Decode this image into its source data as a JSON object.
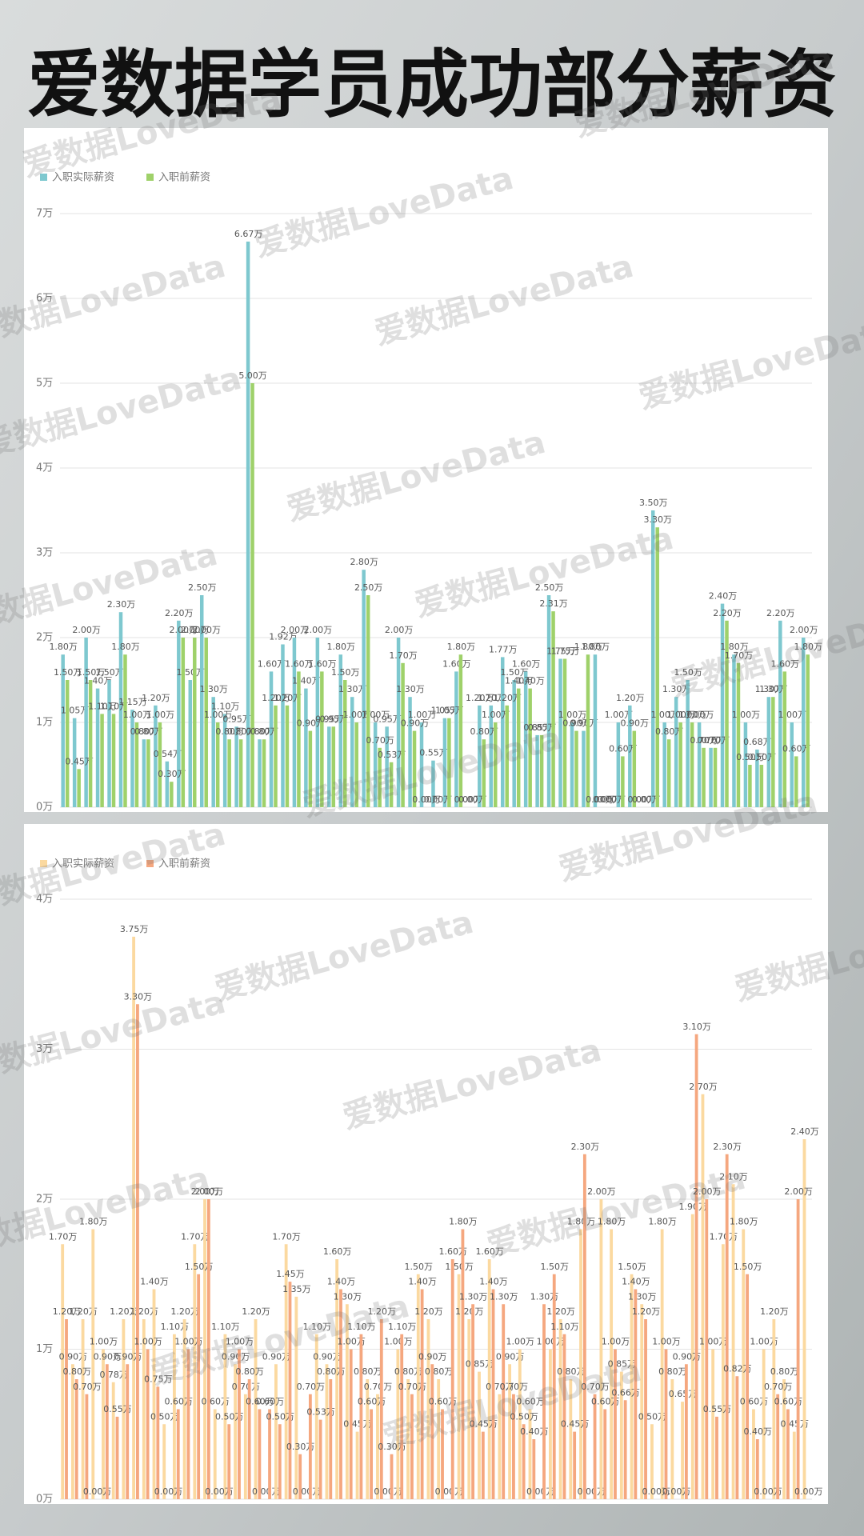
{
  "header": {
    "title": "爱数据学员成功部分薪资"
  },
  "watermark": "爱数据LoveData",
  "chart_data": [
    {
      "type": "bar",
      "ylim": [
        0,
        7
      ],
      "yticks": [
        {
          "value": 0,
          "label": "0万"
        },
        {
          "value": 1,
          "label": "1万"
        },
        {
          "value": 2,
          "label": "2万"
        },
        {
          "value": 3,
          "label": "3万"
        },
        {
          "value": 4,
          "label": "4万"
        },
        {
          "value": 5,
          "label": "5万"
        },
        {
          "value": 6,
          "label": "6万"
        },
        {
          "value": 7,
          "label": "7万"
        }
      ],
      "grid": true,
      "legend": "top-left",
      "series": [
        {
          "name": "入职实际薪资",
          "color": "#7ec8cf",
          "values": [
            1.8,
            1.05,
            2,
            1.4,
            1.5,
            2.3,
            1.15,
            0.8,
            1.2,
            0.54,
            2.2,
            1.5,
            2.5,
            1.3,
            1.1,
            0.95,
            6.67,
            0.8,
            1.6,
            1.92,
            2,
            1.4,
            2,
            0.95,
            1.8,
            1.3,
            2.8,
            1,
            0.95,
            2,
            1.3,
            1,
            0.55,
            1.05,
            1.6,
            0,
            1.2,
            1.2,
            1.77,
            1.5,
            1.6,
            0.85,
            2.5,
            1.75,
            1,
            0.9,
            1.8,
            0,
            1,
            1.2,
            0,
            3.5,
            1,
            1.3,
            1.5,
            1,
            0.7,
            2.4,
            1.8,
            1,
            0.68,
            1.3,
            2.2,
            1,
            2
          ],
          "value_labels": [
            "1.80万",
            "1.05万",
            "2.00万",
            "1.40万",
            "1.50万",
            "2.30万",
            "1.15万",
            "0.80万",
            "1.20万",
            "0.54万",
            "2.20万",
            "1.50万",
            "2.50万",
            "1.30万",
            "1.10万",
            "0.95万",
            "6.67万",
            "0.80万",
            "1.60万",
            "1.92万",
            "2.00万",
            "1.40万",
            "2.00万",
            "0.95万",
            "1.80万",
            "1.30万",
            "2.80万",
            "1.00万",
            "0.95万",
            "2.00万",
            "1.30万",
            "1.00万",
            "0.55万",
            "1.05万",
            "1.60万",
            "0.00万",
            "1.20万",
            "1.20万",
            "1.77万",
            "1.50万",
            "1.60万",
            "0.85万",
            "2.50万",
            "1.75万",
            "1.00万",
            "0.90万",
            "1.80万",
            "0.00万",
            "1.00万",
            "1.20万",
            "0.00万",
            "3.50万",
            "1.00万",
            "1.30万",
            "1.50万",
            "1.00万",
            "0.70万",
            "2.40万",
            "1.80万",
            "1.00万",
            "0.68万",
            "1.30万",
            "2.20万",
            "1.00万",
            "2.00万"
          ]
        },
        {
          "name": "入职前薪资",
          "color": "#9fd16a",
          "values": [
            1.5,
            0.45,
            1.5,
            1.1,
            1.1,
            1.8,
            1,
            0.8,
            1,
            0.3,
            2,
            2,
            2,
            1,
            0.8,
            0.8,
            5,
            0.8,
            1.2,
            1.2,
            1.6,
            0.9,
            1.6,
            0.95,
            1.5,
            1,
            2.5,
            0.7,
            0.53,
            1.7,
            0.9,
            0,
            0,
            1.05,
            1.8,
            0,
            0.8,
            1,
            1.2,
            1.4,
            1.4,
            0.85,
            2.31,
            1.75,
            0.9,
            1.8,
            0,
            0,
            0.6,
            0.9,
            0,
            3.3,
            0.8,
            1,
            1,
            0.7,
            0.7,
            2.2,
            1.7,
            0.5,
            0.5,
            1.3,
            1.6,
            0.6,
            1.8
          ],
          "value_labels": [
            "1.50万",
            "0.45万",
            "1.50万",
            "1.10万",
            "1.10万",
            "1.80万",
            "1.00万",
            "0.80万",
            "1.00万",
            "0.30万",
            "2.00万",
            "2.00万",
            "2.00万",
            "1.00万",
            "0.80万",
            "0.80万",
            "5.00万",
            "0.80万",
            "1.20万",
            "1.20万",
            "1.60万",
            "0.90万",
            "1.60万",
            "0.95万",
            "1.50万",
            "1.00万",
            "2.50万",
            "0.70万",
            "0.53万",
            "1.70万",
            "0.90万",
            "0.00万",
            "0.00万",
            "1.05万",
            "1.80万",
            "0.00万",
            "0.80万",
            "1.00万",
            "1.20万",
            "1.40万",
            "1.40万",
            "0.85万",
            "2.31万",
            "1.75万",
            "0.90万",
            "1.80万",
            "0.00万",
            "0.00万",
            "0.60万",
            "0.90万",
            "0.00万",
            "3.30万",
            "0.80万",
            "1.00万",
            "1.00万",
            "0.70万",
            "0.70万",
            "2.20万",
            "1.70万",
            "0.50万",
            "0.50万",
            "1.30万",
            "1.60万",
            "0.60万",
            "1.80万"
          ]
        }
      ]
    },
    {
      "type": "bar",
      "ylim": [
        0,
        4
      ],
      "yticks": [
        {
          "value": 0,
          "label": "0万"
        },
        {
          "value": 1,
          "label": "1万"
        },
        {
          "value": 2,
          "label": "2万"
        },
        {
          "value": 3,
          "label": "3万"
        },
        {
          "value": 4,
          "label": "4万"
        }
      ],
      "grid": true,
      "legend": "top-left",
      "series": [
        {
          "name": "入职实际薪资",
          "color": "#fbd9a0",
          "values": [
            1.7,
            0.9,
            1.2,
            1.8,
            1,
            0.78,
            1.2,
            3.75,
            1.2,
            1.4,
            0.5,
            1.1,
            1.2,
            1.7,
            2,
            0.6,
            1.1,
            0.9,
            0.7,
            1.2,
            0,
            0.9,
            1.7,
            1.35,
            0,
            1.1,
            0.9,
            1.6,
            1.3,
            0.45,
            0.8,
            0.7,
            0,
            1,
            0.8,
            1.5,
            1.2,
            0.8,
            0,
            1.5,
            1.2,
            0.85,
            1.6,
            0.7,
            0.9,
            1,
            0.6,
            0,
            1,
            1.2,
            0.8,
            1.8,
            0,
            2,
            1.8,
            0.85,
            1.5,
            1.3,
            0.5,
            1.8,
            0.8,
            0.65,
            1.9,
            2.7,
            1,
            1.7,
            2.1,
            1.8,
            0.6,
            1,
            1.2,
            0.8,
            0.45,
            2.4
          ],
          "value_labels": [
            "1.70万",
            "0.90万",
            "1.20万",
            "1.80万",
            "1.00万",
            "0.78万",
            "1.20万",
            "3.75万",
            "1.20万",
            "1.40万",
            "0.50万",
            "1.10万",
            "1.20万",
            "1.70万",
            "2.00万",
            "0.60万",
            "1.10万",
            "0.90万",
            "0.70万",
            "1.20万",
            "0.00万",
            "0.90万",
            "1.70万",
            "1.35万",
            "0.00万",
            "1.10万",
            "0.90万",
            "1.60万",
            "1.30万",
            "0.45万",
            "0.80万",
            "0.70万",
            "0.00万",
            "1.00万",
            "0.80万",
            "1.50万",
            "1.20万",
            "0.80万",
            "0.00万",
            "1.50万",
            "1.20万",
            "0.85万",
            "1.60万",
            "0.70万",
            "0.90万",
            "1.00万",
            "0.60万",
            "0.00万",
            "1.00万",
            "1.20万",
            "0.80万",
            "1.80万",
            "0.00万",
            "2.00万",
            "1.80万",
            "0.85万",
            "1.50万",
            "1.30万",
            "0.50万",
            "1.80万",
            "0.80万",
            "0.65万",
            "1.90万",
            "2.70万",
            "1.00万",
            "1.70万",
            "2.10万",
            "1.80万",
            "0.60万",
            "1.00万",
            "1.20万",
            "0.80万",
            "0.45万",
            "2.40万"
          ]
        },
        {
          "name": "入职前薪资",
          "color": "#f5a77f",
          "values": [
            1.2,
            0.8,
            0.7,
            0,
            0.9,
            0.55,
            0.9,
            3.3,
            1,
            0.75,
            0,
            0.6,
            1,
            1.5,
            2,
            0,
            0.5,
            1,
            0.8,
            0.6,
            0.6,
            0.5,
            1.45,
            0.3,
            0.7,
            0.53,
            0.8,
            1.4,
            1,
            1.1,
            0.6,
            1.2,
            0.3,
            1.1,
            0.7,
            1.4,
            0.9,
            0.6,
            1.6,
            1.8,
            1.3,
            0.45,
            1.4,
            1.3,
            0.7,
            0.5,
            0.4,
            1.3,
            1.5,
            1.1,
            0.45,
            2.3,
            0.7,
            0.6,
            1,
            0.66,
            1.4,
            1.2,
            0,
            1,
            0,
            0.9,
            3.1,
            2,
            0.55,
            2.3,
            0.82,
            1.5,
            0.4,
            0,
            0.7,
            0.6,
            2,
            0
          ],
          "value_labels": [
            "1.20万",
            "0.80万",
            "0.70万",
            "0.00万",
            "0.90万",
            "0.55万",
            "0.90万",
            "3.30万",
            "1.00万",
            "0.75万",
            "0.00万",
            "0.60万",
            "1.00万",
            "1.50万",
            "2.00万",
            "0.00万",
            "0.50万",
            "1.00万",
            "0.80万",
            "0.60万",
            "0.60万",
            "0.50万",
            "1.45万",
            "0.30万",
            "0.70万",
            "0.53万",
            "0.80万",
            "1.40万",
            "1.00万",
            "1.10万",
            "0.60万",
            "1.20万",
            "0.30万",
            "1.10万",
            "0.70万",
            "1.40万",
            "0.90万",
            "0.60万",
            "1.60万",
            "1.80万",
            "1.30万",
            "0.45万",
            "1.40万",
            "1.30万",
            "0.70万",
            "0.50万",
            "0.40万",
            "1.30万",
            "1.50万",
            "1.10万",
            "0.45万",
            "2.30万",
            "0.70万",
            "0.60万",
            "1.00万",
            "0.66万",
            "1.40万",
            "1.20万",
            "0.00万",
            "1.00万",
            "0.00万",
            "0.90万",
            "3.10万",
            "2.00万",
            "0.55万",
            "2.30万",
            "0.82万",
            "1.50万",
            "0.40万",
            "0.00万",
            "0.70万",
            "0.60万",
            "2.00万",
            "0.00万"
          ]
        }
      ]
    }
  ]
}
